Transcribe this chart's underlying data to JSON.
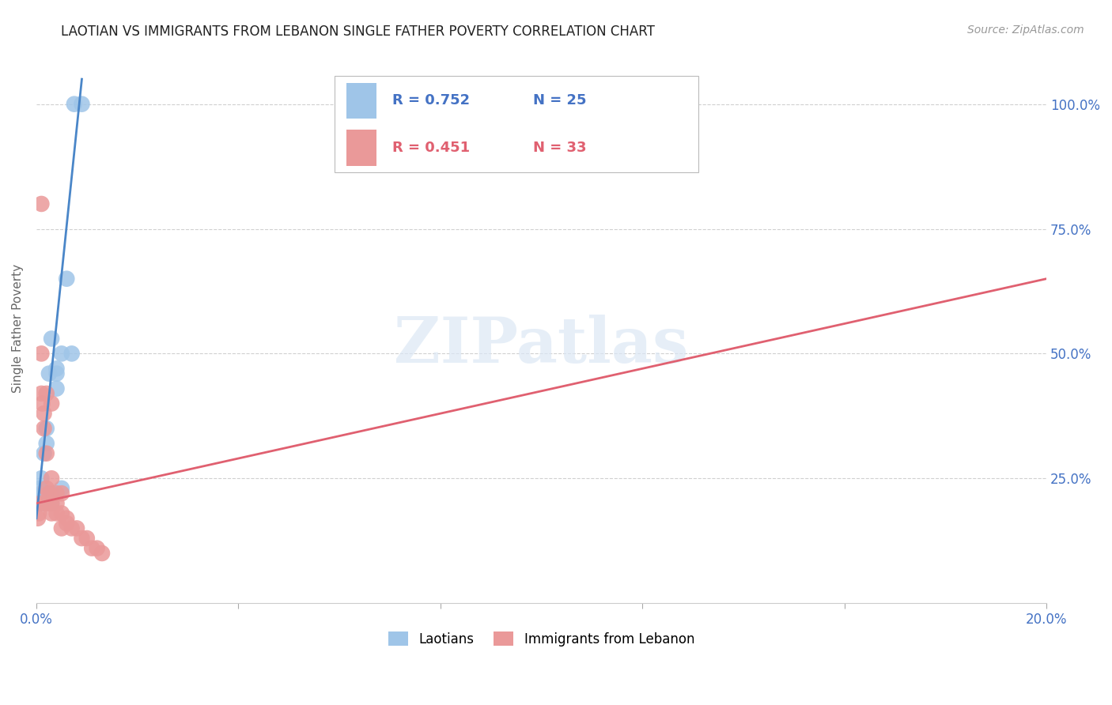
{
  "title": "LAOTIAN VS IMMIGRANTS FROM LEBANON SINGLE FATHER POVERTY CORRELATION CHART",
  "source": "Source: ZipAtlas.com",
  "ylabel": "Single Father Poverty",
  "legend_blue": {
    "R": "0.752",
    "N": "25",
    "label": "Laotians"
  },
  "legend_pink": {
    "R": "0.451",
    "N": "33",
    "label": "Immigrants from Lebanon"
  },
  "blue_color": "#9fc5e8",
  "pink_color": "#ea9999",
  "blue_line_color": "#4a86c8",
  "pink_line_color": "#e06070",
  "watermark_text": "ZIPatlas",
  "xlim": [
    0.0,
    0.2
  ],
  "ylim": [
    0.0,
    1.1
  ],
  "xticks": [
    0.0,
    0.04,
    0.08,
    0.12,
    0.16,
    0.2
  ],
  "xtick_labels": [
    "0.0%",
    "",
    "",
    "",
    "",
    "20.0%"
  ],
  "yticks": [
    0.0,
    0.25,
    0.5,
    0.75,
    1.0
  ],
  "ytick_labels_right": [
    "",
    "25.0%",
    "50.0%",
    "75.0%",
    "100.0%"
  ],
  "laotian_points": [
    [
      0.0005,
      0.2
    ],
    [
      0.0008,
      0.23
    ],
    [
      0.001,
      0.22
    ],
    [
      0.001,
      0.25
    ],
    [
      0.0012,
      0.2
    ],
    [
      0.0015,
      0.22
    ],
    [
      0.0015,
      0.3
    ],
    [
      0.002,
      0.22
    ],
    [
      0.002,
      0.32
    ],
    [
      0.002,
      0.35
    ],
    [
      0.002,
      0.2
    ],
    [
      0.0025,
      0.46
    ],
    [
      0.003,
      0.53
    ],
    [
      0.003,
      0.22
    ],
    [
      0.003,
      0.21
    ],
    [
      0.003,
      0.2
    ],
    [
      0.004,
      0.47
    ],
    [
      0.004,
      0.46
    ],
    [
      0.004,
      0.43
    ],
    [
      0.005,
      0.5
    ],
    [
      0.005,
      0.23
    ],
    [
      0.006,
      0.65
    ],
    [
      0.007,
      0.5
    ],
    [
      0.0075,
      1.0
    ],
    [
      0.009,
      1.0
    ]
  ],
  "lebanon_points": [
    [
      0.0003,
      0.17
    ],
    [
      0.0005,
      0.18
    ],
    [
      0.0008,
      0.2
    ],
    [
      0.001,
      0.8
    ],
    [
      0.001,
      0.5
    ],
    [
      0.001,
      0.42
    ],
    [
      0.0012,
      0.4
    ],
    [
      0.0015,
      0.38
    ],
    [
      0.0015,
      0.35
    ],
    [
      0.002,
      0.42
    ],
    [
      0.002,
      0.3
    ],
    [
      0.002,
      0.23
    ],
    [
      0.002,
      0.2
    ],
    [
      0.0025,
      0.22
    ],
    [
      0.003,
      0.4
    ],
    [
      0.003,
      0.25
    ],
    [
      0.003,
      0.2
    ],
    [
      0.003,
      0.18
    ],
    [
      0.004,
      0.22
    ],
    [
      0.004,
      0.2
    ],
    [
      0.004,
      0.18
    ],
    [
      0.005,
      0.22
    ],
    [
      0.005,
      0.18
    ],
    [
      0.005,
      0.15
    ],
    [
      0.006,
      0.17
    ],
    [
      0.006,
      0.16
    ],
    [
      0.007,
      0.15
    ],
    [
      0.008,
      0.15
    ],
    [
      0.009,
      0.13
    ],
    [
      0.01,
      0.13
    ],
    [
      0.011,
      0.11
    ],
    [
      0.012,
      0.11
    ],
    [
      0.013,
      0.1
    ]
  ],
  "blue_line_pts": [
    [
      0.0,
      0.17
    ],
    [
      0.009,
      1.05
    ]
  ],
  "pink_line_pts": [
    [
      0.0,
      0.2
    ],
    [
      0.2,
      0.65
    ]
  ]
}
